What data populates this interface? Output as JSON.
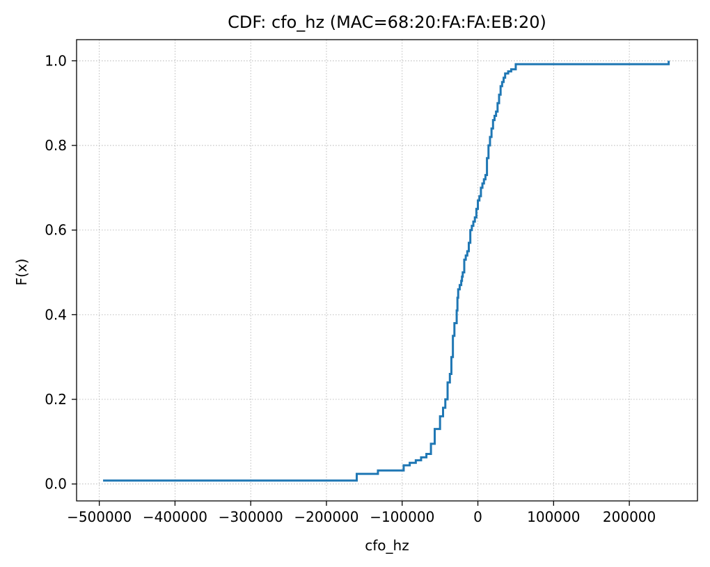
{
  "chart_data": {
    "type": "line",
    "step": true,
    "title": "CDF: cfo_hz (MAC=68:20:FA:FA:EB:20)",
    "xlabel": "cfo_hz",
    "ylabel": "F(x)",
    "xlim": [
      -530000,
      290000
    ],
    "ylim": [
      -0.04,
      1.05
    ],
    "xticks": [
      -500000,
      -400000,
      -300000,
      -200000,
      -100000,
      0,
      100000,
      200000
    ],
    "xtick_labels": [
      "−500000",
      "−400000",
      "−300000",
      "−200000",
      "−100000",
      "0",
      "100000",
      "200000"
    ],
    "yticks": [
      0.0,
      0.2,
      0.4,
      0.6,
      0.8,
      1.0
    ],
    "ytick_labels": [
      "0.0",
      "0.2",
      "0.4",
      "0.6",
      "0.8",
      "1.0"
    ],
    "grid": true,
    "line_color": "#1f77b4",
    "series": [
      {
        "x": [
          -495000,
          -160000,
          -132000,
          -98000,
          -90000,
          -82000,
          -75000,
          -68000,
          -62000,
          -57000,
          -50000,
          -46000,
          -43000,
          -40000,
          -37000,
          -35000,
          -33000,
          -31000,
          -28000,
          -27000,
          -26000,
          -24000,
          -22000,
          -21000,
          -20000,
          -18000,
          -16000,
          -14000,
          -12000,
          -10000,
          -8000,
          -6000,
          -4000,
          -2000,
          0,
          2000,
          4000,
          6000,
          8000,
          10000,
          12000,
          14000,
          16000,
          18000,
          20000,
          22000,
          24000,
          26000,
          28000,
          30000,
          32000,
          34000,
          36000,
          40000,
          44000,
          50000,
          252000
        ],
        "y": [
          0.008,
          0.024,
          0.032,
          0.044,
          0.05,
          0.056,
          0.063,
          0.071,
          0.095,
          0.13,
          0.16,
          0.18,
          0.2,
          0.24,
          0.26,
          0.3,
          0.35,
          0.38,
          0.41,
          0.44,
          0.46,
          0.47,
          0.48,
          0.49,
          0.5,
          0.53,
          0.54,
          0.55,
          0.57,
          0.6,
          0.61,
          0.62,
          0.63,
          0.65,
          0.67,
          0.68,
          0.7,
          0.71,
          0.72,
          0.73,
          0.77,
          0.8,
          0.82,
          0.84,
          0.86,
          0.87,
          0.88,
          0.9,
          0.92,
          0.94,
          0.95,
          0.96,
          0.97,
          0.975,
          0.98,
          0.992,
          1.0
        ]
      }
    ]
  }
}
